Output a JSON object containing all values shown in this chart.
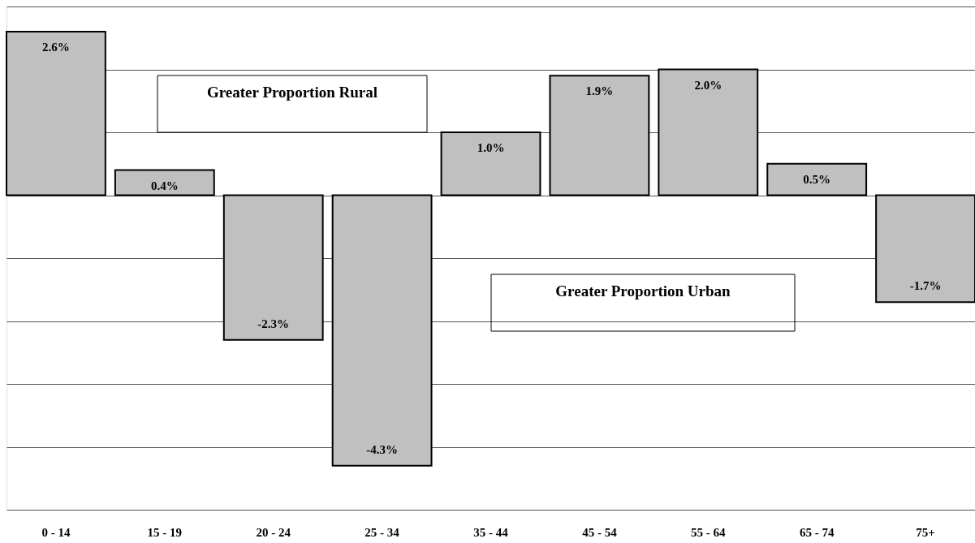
{
  "chart_data": {
    "type": "bar",
    "categories": [
      "0 - 14",
      "15 - 19",
      "20 - 24",
      "25 - 34",
      "35 - 44",
      "45 - 54",
      "55 - 64",
      "65 - 74",
      "75+"
    ],
    "values": [
      2.6,
      0.4,
      -2.3,
      -4.3,
      1.0,
      1.9,
      2.0,
      0.5,
      -1.7
    ],
    "value_labels": [
      "2.6%",
      "0.4%",
      "-2.3%",
      "-4.3%",
      "1.0%",
      "1.9%",
      "2.0%",
      "0.5%",
      "-1.7%"
    ],
    "color": "#c0c0c0",
    "ylim": [
      -5,
      3
    ],
    "yticks": [
      {
        "value": -5,
        "label": null
      },
      {
        "value": -4,
        "label": null
      },
      {
        "value": -3,
        "label": null
      },
      {
        "value": -2,
        "label": null
      },
      {
        "value": -1,
        "label": null
      },
      {
        "value": 0,
        "label": null
      },
      {
        "value": 1,
        "label": null
      },
      {
        "value": 2,
        "label": null
      },
      {
        "value": 3,
        "label": null
      }
    ],
    "tick_labels": "x",
    "grid": "y",
    "annotations": [
      "Greater Proportion Rural",
      "Greater Proportion Urban"
    ]
  }
}
